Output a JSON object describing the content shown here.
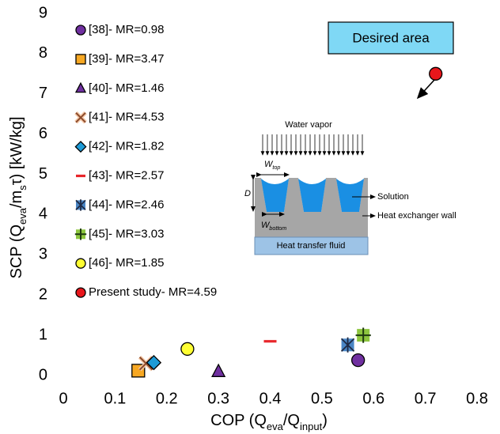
{
  "chart_data": {
    "type": "scatter",
    "x_label": [
      {
        "text": "COP (Q"
      },
      {
        "text": "eva",
        "sub": true
      },
      {
        "text": "/Q"
      },
      {
        "text": "input",
        "sub": true
      },
      {
        "text": ")"
      }
    ],
    "y_label": [
      {
        "text": "SCP (Q"
      },
      {
        "text": "eva",
        "sub": true
      },
      {
        "text": "/m"
      },
      {
        "text": "s",
        "sub": true
      },
      {
        "text": "τ) [kW/kg]"
      }
    ],
    "xlim": [
      0,
      0.8
    ],
    "xticks": [
      0,
      0.1,
      0.2,
      0.3,
      0.4,
      0.5,
      0.6,
      0.7,
      0.8
    ],
    "ylim": [
      0,
      9
    ],
    "yticks": [
      0,
      1,
      2,
      3,
      4,
      5,
      6,
      7,
      8,
      9
    ],
    "grid": false,
    "legend": "top-left",
    "series": [
      {
        "name": "[38]- MR=0.98",
        "marker": "circle",
        "color": "#7030a0",
        "x": [
          0.57
        ],
        "values": [
          0.38
        ]
      },
      {
        "name": "[39]- MR=3.47",
        "marker": "square",
        "color": "#f7a823",
        "x": [
          0.145
        ],
        "values": [
          0.12
        ]
      },
      {
        "name": "[40]- MR=1.46",
        "marker": "triangle",
        "color": "#7030a0",
        "x": [
          0.3
        ],
        "values": [
          0.1
        ]
      },
      {
        "name": "[41]- MR=4.53",
        "marker": "x",
        "color": "#8b4a2b",
        "x": [
          0.16
        ],
        "values": [
          0.3
        ]
      },
      {
        "name": "[42]- MR=1.82",
        "marker": "diamond",
        "color": "#1e9bd7",
        "x": [
          0.175
        ],
        "values": [
          0.32
        ]
      },
      {
        "name": "[43]- MR=2.57",
        "marker": "dash",
        "color": "#e8262a",
        "x": [
          0.4
        ],
        "values": [
          0.85
        ]
      },
      {
        "name": "[44]- MR=2.46",
        "marker": "asterisk-square",
        "color": "#4a86c5",
        "x": [
          0.55
        ],
        "values": [
          0.76
        ]
      },
      {
        "name": "[45]- MR=3.03",
        "marker": "plus-square",
        "color": "#8dc63f",
        "x": [
          0.58
        ],
        "values": [
          1.0
        ]
      },
      {
        "name": "[46]- MR=1.85",
        "marker": "circle",
        "color": "#ffff33",
        "x": [
          0.24
        ],
        "values": [
          0.66
        ]
      },
      {
        "name": "Present study- MR=4.59",
        "marker": "circle",
        "color": "#e8161b",
        "x": [
          0.72
        ],
        "values": [
          7.5
        ]
      }
    ],
    "annotation": "Desired area",
    "inset": {
      "water_vapor": "Water vapor",
      "w_top": [
        {
          "text": "W"
        },
        {
          "text": "top",
          "sub": true
        }
      ],
      "depth": "D",
      "w_bottom": [
        {
          "text": "W"
        },
        {
          "text": "bottom",
          "sub": true
        }
      ],
      "solution": "Solution",
      "wall": "Heat exchanger wall",
      "fluid": "Heat transfer fluid"
    }
  }
}
